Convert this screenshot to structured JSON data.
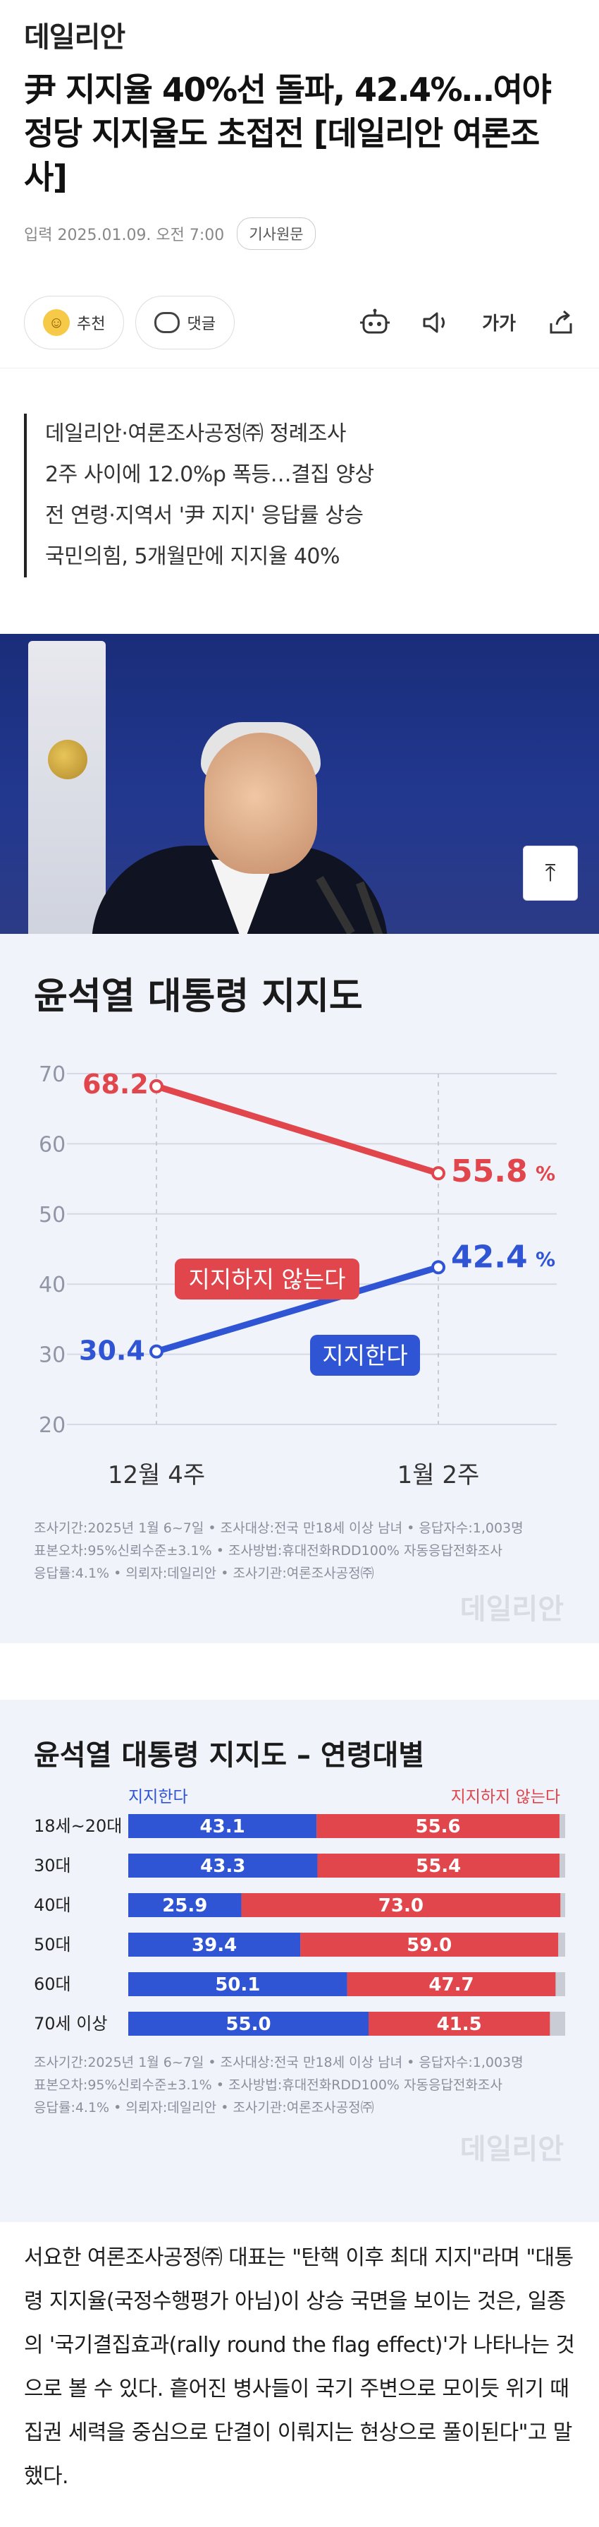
{
  "site": {
    "logo": "데일리안"
  },
  "article": {
    "headline": "尹 지지율 40%선 돌파, 42.4%…여야 정당 지지율도 초접전 [데일리안 여론조사]",
    "date": "입력 2025.01.09. 오전 7:00",
    "badge": "기사원문",
    "summary": [
      "데일리안·여론조사공정㈜ 정례조사",
      "2주 사이에 12.0%p 폭등…결집 양상",
      "전 연령·지역서 '尹 지지' 응답률 상승",
      "국민의힘, 5개월만에 지지율 40%"
    ],
    "body": "서요한 여론조사공정㈜ 대표는 \"탄핵 이후 최대 지지\"라며 \"대통령 지지율(국정수행평가 아님)이 상승 국면을 보이는 것은, 일종의 '국기결집효과(rally round the flag effect)'가 나타나는 것으로 볼 수 있다. 흩어진 병사들이 국기 주변으로 모이듯 위기 때 집권 세력을 중심으로 단결이 이뤄지는 현상으로 풀이된다\"고 말했다."
  },
  "actions": {
    "recommend": "추천",
    "comment": "댓글",
    "font_label": "가가"
  },
  "icons": {
    "recommend": "smile-icon",
    "comment": "comment-icon",
    "bot": "robot-icon",
    "speaker": "speaker-icon",
    "font": "font-size-icon",
    "share": "share-icon",
    "scroll_top": "arrow-up-icon"
  },
  "colors": {
    "oppose": "#e0464b",
    "support": "#2f55d4",
    "card_bg": "#f0f3fa"
  },
  "chart_data": [
    {
      "type": "line",
      "title": "윤석열 대통령 지지도",
      "categories": [
        "12월 4주",
        "1월 2주"
      ],
      "ylim": [
        20,
        70
      ],
      "yticks": [
        20,
        30,
        40,
        50,
        60,
        70
      ],
      "grid": true,
      "series": [
        {
          "name": "지지하지 않는다",
          "values": [
            68.2,
            55.8
          ]
        },
        {
          "name": "지지한다",
          "values": [
            30.4,
            42.4
          ]
        }
      ],
      "value_labels": [
        "68.2",
        "55.8",
        "30.4",
        "42.4"
      ],
      "unit": "%",
      "notes": [
        "조사기간:2025년 1월 6~7일 • 조사대상:전국 만18세 이상 남녀 • 응답자수:1,003명",
        "표본오차:95%신뢰수준±3.1% • 조사방법:휴대전화RDD100% 자동응답전화조사",
        "응답률:4.1% • 의뢰자:데일리안 • 조사기관:여론조사공정㈜"
      ],
      "watermark": "데일리안"
    },
    {
      "type": "bar",
      "stacked": true,
      "orientation": "horizontal",
      "title": "윤석열 대통령 지지도 – 연령대별",
      "legend": [
        "지지한다",
        "지지하지 않는다"
      ],
      "categories": [
        "18세~20대",
        "30대",
        "40대",
        "50대",
        "60대",
        "70세 이상"
      ],
      "series": [
        {
          "name": "지지한다",
          "values": [
            43.1,
            43.3,
            25.9,
            39.4,
            50.1,
            55.0
          ],
          "labels": [
            "43.1",
            "43.3",
            "25.9",
            "39.4",
            "50.1",
            "55.0"
          ]
        },
        {
          "name": "지지하지 않는다",
          "values": [
            55.6,
            55.4,
            73.0,
            59.0,
            47.7,
            41.5
          ],
          "labels": [
            "55.6",
            "55.4",
            "73.0",
            "59.0",
            "47.7",
            "41.5"
          ]
        }
      ],
      "xlim": [
        0,
        100
      ],
      "notes": [
        "조사기간:2025년 1월 6~7일 • 조사대상:전국 만18세 이상 남녀 • 응답자수:1,003명",
        "표본오차:95%신뢰수준±3.1% • 조사방법:휴대전화RDD100% 자동응답전화조사",
        "응답률:4.1% • 의뢰자:데일리안 • 조사기관:여론조사공정㈜"
      ],
      "watermark": "데일리안"
    }
  ]
}
